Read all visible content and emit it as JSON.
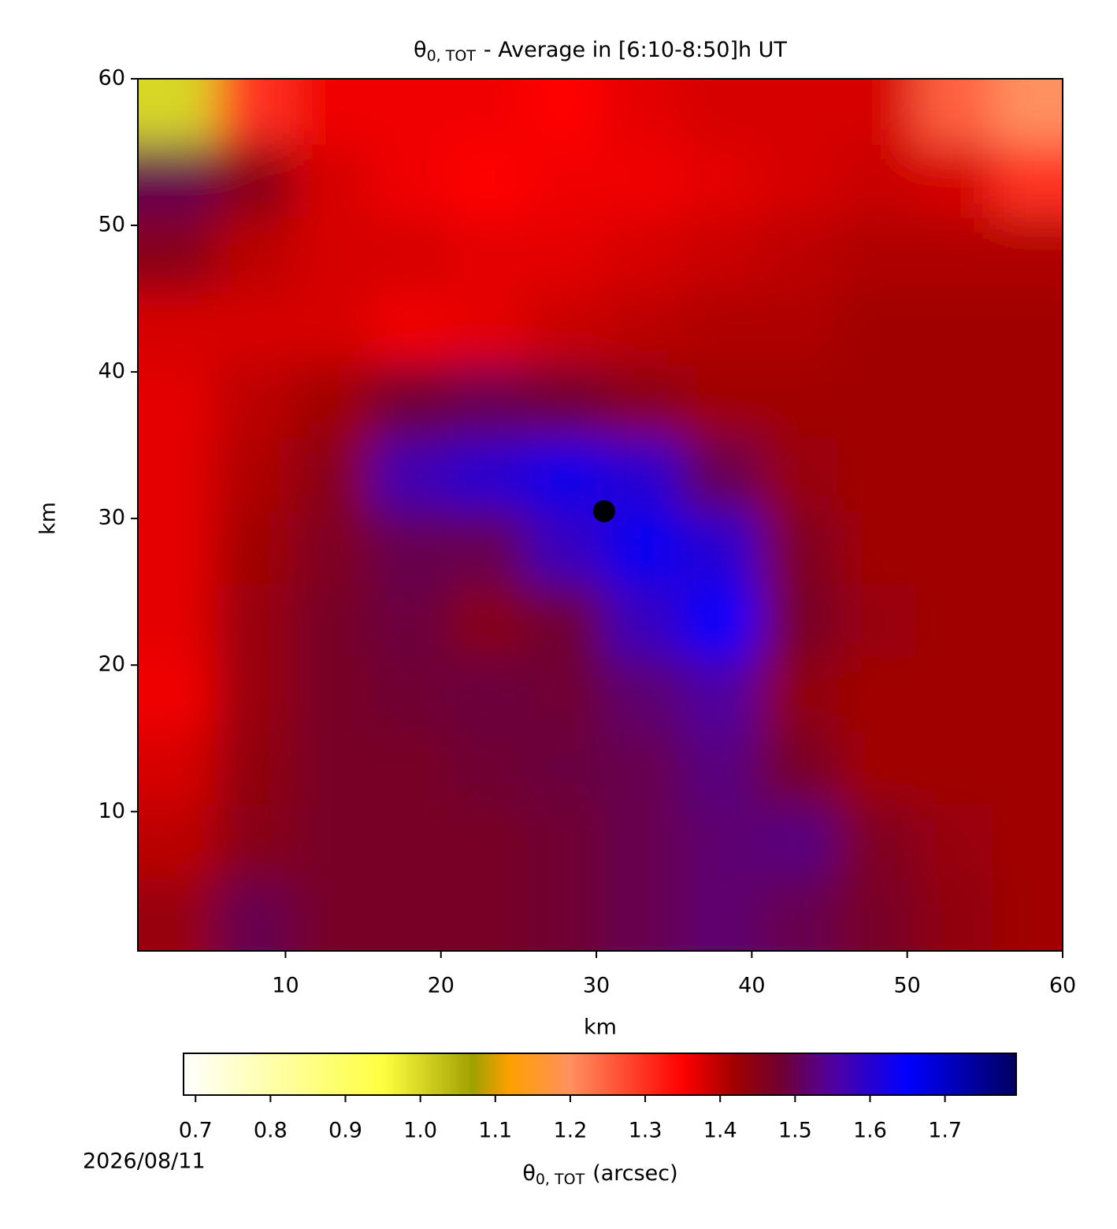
{
  "chart_data": {
    "type": "heatmap",
    "title": {
      "symbol": "θ",
      "subscript": "0, TOT",
      "text": "- Average in [6:10-8:50]h UT"
    },
    "x_label": "km",
    "y_label": "km",
    "xlim": [
      0.5,
      60
    ],
    "ylim": [
      0.5,
      60
    ],
    "xticks": [
      10,
      20,
      30,
      40,
      50,
      60
    ],
    "yticks": [
      10,
      20,
      30,
      40,
      50,
      60
    ],
    "x": [
      3,
      8,
      13,
      18,
      23,
      28,
      33,
      38,
      43,
      48,
      53,
      58
    ],
    "y": [
      58,
      53,
      48,
      43,
      38,
      33,
      28,
      23,
      18,
      13,
      8,
      3
    ],
    "z": [
      [
        1.0,
        1.3,
        1.36,
        1.36,
        1.36,
        1.35,
        1.37,
        1.38,
        1.38,
        1.38,
        1.25,
        1.2
      ],
      [
        1.5,
        1.45,
        1.38,
        1.36,
        1.35,
        1.36,
        1.36,
        1.37,
        1.38,
        1.39,
        1.38,
        1.3
      ],
      [
        1.45,
        1.4,
        1.38,
        1.38,
        1.37,
        1.37,
        1.38,
        1.39,
        1.4,
        1.41,
        1.41,
        1.41
      ],
      [
        1.38,
        1.38,
        1.38,
        1.36,
        1.37,
        1.39,
        1.4,
        1.41,
        1.41,
        1.42,
        1.42,
        1.42
      ],
      [
        1.37,
        1.4,
        1.42,
        1.48,
        1.5,
        1.48,
        1.45,
        1.42,
        1.42,
        1.42,
        1.42,
        1.42
      ],
      [
        1.37,
        1.41,
        1.45,
        1.57,
        1.6,
        1.63,
        1.6,
        1.5,
        1.43,
        1.42,
        1.42,
        1.42
      ],
      [
        1.37,
        1.42,
        1.46,
        1.5,
        1.5,
        1.58,
        1.66,
        1.6,
        1.46,
        1.42,
        1.42,
        1.42
      ],
      [
        1.37,
        1.43,
        1.47,
        1.49,
        1.45,
        1.48,
        1.58,
        1.65,
        1.47,
        1.43,
        1.42,
        1.42
      ],
      [
        1.36,
        1.43,
        1.47,
        1.48,
        1.49,
        1.48,
        1.52,
        1.55,
        1.44,
        1.42,
        1.42,
        1.42
      ],
      [
        1.38,
        1.44,
        1.47,
        1.47,
        1.48,
        1.49,
        1.5,
        1.53,
        1.47,
        1.42,
        1.42,
        1.42
      ],
      [
        1.4,
        1.45,
        1.47,
        1.47,
        1.47,
        1.48,
        1.5,
        1.52,
        1.53,
        1.46,
        1.43,
        1.42
      ],
      [
        1.43,
        1.5,
        1.47,
        1.47,
        1.47,
        1.48,
        1.5,
        1.52,
        1.5,
        1.47,
        1.44,
        1.42
      ]
    ],
    "marker": {
      "x": 30.5,
      "y": 30.5,
      "color": "#000000"
    },
    "colorbar": {
      "label_symbol": "θ",
      "label_subscript": "0, TOT",
      "label_text": "(arcsec)",
      "clim": [
        0.684,
        1.795
      ],
      "ticks": [
        0.7,
        0.8,
        0.9,
        {
          "value": 1,
          "label": "1.0"
        },
        1.1,
        1.2,
        1.3,
        1.4,
        1.5,
        1.6,
        1.7
      ],
      "stops": [
        {
          "value": 0.684,
          "color": "#ffffff"
        },
        {
          "value": 0.95,
          "color": "#ffff40"
        },
        {
          "value": 1.07,
          "color": "#a0a000"
        },
        {
          "value": 1.12,
          "color": "#ffa000"
        },
        {
          "value": 1.2,
          "color": "#ff9060"
        },
        {
          "value": 1.35,
          "color": "#ff0000"
        },
        {
          "value": 1.42,
          "color": "#a00000"
        },
        {
          "value": 1.48,
          "color": "#700030"
        },
        {
          "value": 1.55,
          "color": "#5000a0"
        },
        {
          "value": 1.65,
          "color": "#0000ff"
        },
        {
          "value": 1.795,
          "color": "#000060"
        }
      ]
    },
    "date": "2026/08/11"
  }
}
